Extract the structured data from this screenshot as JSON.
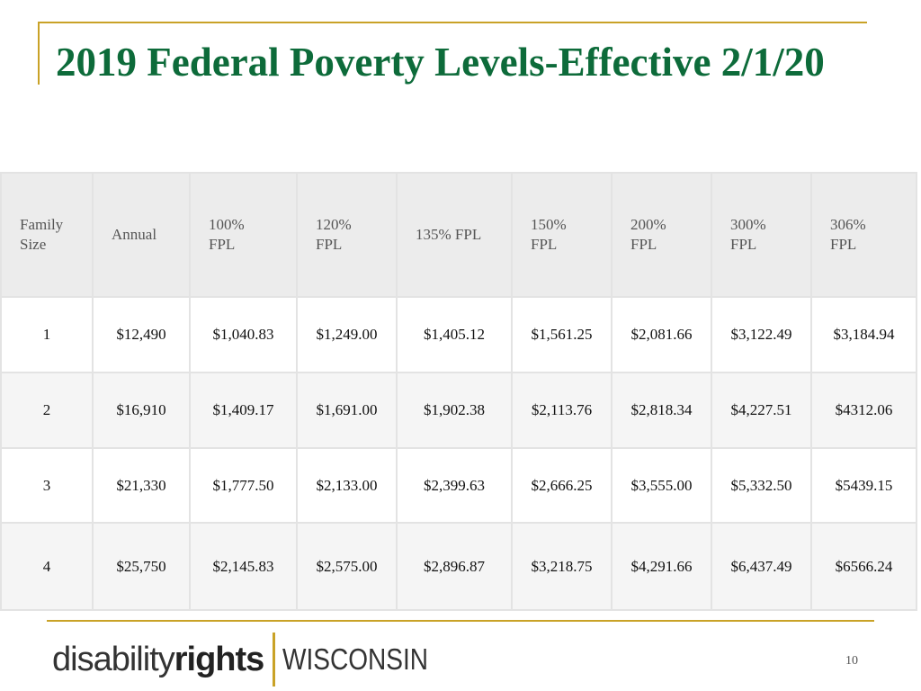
{
  "title": "2019 Federal Poverty Levels-Effective 2/1/20",
  "table": {
    "headers": [
      "Family\nSize",
      "Annual",
      "100%\nFPL",
      "120%\nFPL",
      "135% FPL",
      "150%\nFPL",
      "200%\nFPL",
      "300%\nFPL",
      "306%\nFPL"
    ],
    "rows": [
      [
        "1",
        "$12,490",
        "$1,040.83",
        "$1,249.00",
        "$1,405.12",
        "$1,561.25",
        "$2,081.66",
        "$3,122.49",
        "$3,184.94"
      ],
      [
        "2",
        "$16,910",
        "$1,409.17",
        "$1,691.00",
        "$1,902.38",
        "$2,113.76",
        "$2,818.34",
        "$4,227.51",
        "$4312.06"
      ],
      [
        "3",
        "$21,330",
        "$1,777.50",
        "$2,133.00",
        "$2,399.63",
        "$2,666.25",
        "$3,555.00",
        "$5,332.50",
        "$5439.15"
      ],
      [
        "4",
        "$25,750",
        "$2,145.83",
        "$2,575.00",
        "$2,896.87",
        "$3,218.75",
        "$4,291.66",
        "$6,437.49",
        "$6566.24"
      ]
    ]
  },
  "logo": {
    "part1": "disability",
    "part2": "rights",
    "part3": "WISCONSIN"
  },
  "page_number": "10"
}
